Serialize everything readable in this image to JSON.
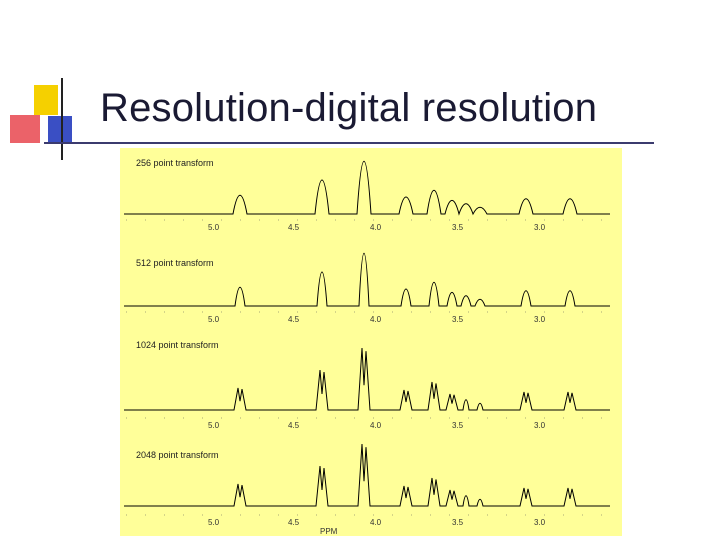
{
  "slide": {
    "title": "Resolution-digital resolution"
  },
  "figure": {
    "panels": [
      {
        "label": "256 point transform",
        "peak_style": "broad"
      },
      {
        "label": "512 point transform",
        "peak_style": "medium"
      },
      {
        "label": "1024 point transform",
        "peak_style": "sharp"
      },
      {
        "label": "2048 point transform",
        "peak_style": "sharp"
      }
    ],
    "axis_ticks": [
      "5.0",
      "4.5",
      "4.0",
      "3.5",
      "3.0"
    ],
    "axis_unit": "PPM",
    "colors": {
      "figure_background": "#ffff99",
      "trace": "#000000",
      "logo_yellow": "#f5d000",
      "logo_red": "#e8474f",
      "logo_blue": "#3a4fc4"
    }
  }
}
